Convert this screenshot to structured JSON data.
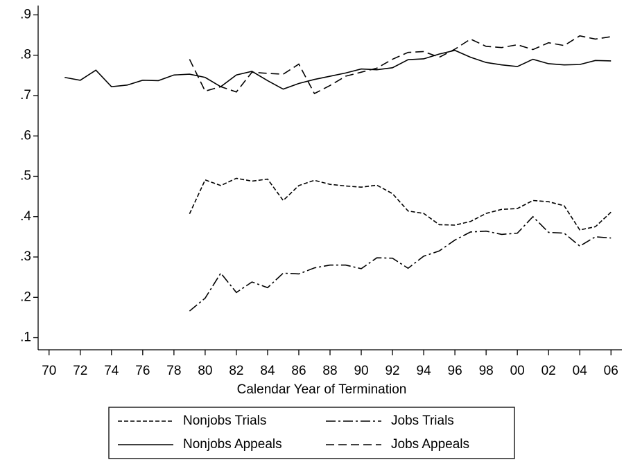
{
  "chart_data": {
    "type": "line",
    "xlabel": "Calendar Year of Termination",
    "x": [
      1971,
      1972,
      1973,
      1974,
      1975,
      1976,
      1977,
      1978,
      1979,
      1980,
      1981,
      1982,
      1983,
      1984,
      1985,
      1986,
      1987,
      1988,
      1989,
      1990,
      1991,
      1992,
      1993,
      1994,
      1995,
      1996,
      1997,
      1998,
      1999,
      2000,
      2001,
      2002,
      2003,
      2004,
      2005,
      2006
    ],
    "series": [
      {
        "name": "Nonjobs Trials",
        "color": "#000000",
        "dash": "6,3",
        "values": [
          null,
          null,
          null,
          null,
          null,
          null,
          null,
          null,
          0.407,
          0.491,
          0.477,
          0.495,
          0.488,
          0.493,
          0.44,
          0.477,
          0.49,
          0.48,
          0.476,
          0.473,
          0.478,
          0.457,
          0.414,
          0.408,
          0.38,
          0.379,
          0.388,
          0.408,
          0.418,
          0.42,
          0.44,
          0.437,
          0.427,
          0.367,
          0.375,
          0.411
        ]
      },
      {
        "name": "Jobs Trials",
        "color": "#000000",
        "dash": "14,4,3,4",
        "values": [
          null,
          null,
          null,
          null,
          null,
          null,
          null,
          null,
          0.166,
          0.198,
          0.26,
          0.212,
          0.238,
          0.224,
          0.26,
          0.258,
          0.273,
          0.28,
          0.28,
          0.271,
          0.298,
          0.297,
          0.272,
          0.302,
          0.315,
          0.342,
          0.362,
          0.364,
          0.356,
          0.359,
          0.4,
          0.361,
          0.359,
          0.327,
          0.35,
          0.347
        ]
      },
      {
        "name": "Nonjobs Appeals",
        "color": "#000000",
        "dash": "none",
        "values": [
          0.745,
          0.738,
          0.763,
          0.722,
          0.726,
          0.738,
          0.737,
          0.751,
          0.753,
          0.745,
          0.722,
          0.751,
          0.76,
          0.737,
          0.716,
          0.73,
          0.74,
          0.748,
          0.756,
          0.766,
          0.764,
          0.769,
          0.789,
          0.791,
          0.803,
          0.812,
          0.795,
          0.782,
          0.776,
          0.772,
          0.79,
          0.779,
          0.776,
          0.777,
          0.787,
          0.786
        ]
      },
      {
        "name": "Jobs Appeals",
        "color": "#000000",
        "dash": "12,6",
        "values": [
          null,
          null,
          null,
          null,
          null,
          null,
          null,
          null,
          0.79,
          0.711,
          0.722,
          0.709,
          0.758,
          0.755,
          0.753,
          0.778,
          0.705,
          0.725,
          0.748,
          0.758,
          0.768,
          0.79,
          0.807,
          0.809,
          0.795,
          0.815,
          0.84,
          0.822,
          0.819,
          0.826,
          0.814,
          0.831,
          0.824,
          0.848,
          0.84,
          0.846
        ]
      }
    ],
    "xlim": [
      1969.3,
      2006.7
    ],
    "ylim": [
      0.07,
      0.93
    ],
    "xticks": [
      {
        "value": 1970,
        "label": "70"
      },
      {
        "value": 1972,
        "label": "72"
      },
      {
        "value": 1974,
        "label": "74"
      },
      {
        "value": 1976,
        "label": "76"
      },
      {
        "value": 1978,
        "label": "78"
      },
      {
        "value": 1980,
        "label": "80"
      },
      {
        "value": 1982,
        "label": "82"
      },
      {
        "value": 1984,
        "label": "84"
      },
      {
        "value": 1986,
        "label": "86"
      },
      {
        "value": 1988,
        "label": "88"
      },
      {
        "value": 1990,
        "label": "90"
      },
      {
        "value": 1992,
        "label": "92"
      },
      {
        "value": 1994,
        "label": "94"
      },
      {
        "value": 1996,
        "label": "96"
      },
      {
        "value": 1998,
        "label": "98"
      },
      {
        "value": 2000,
        "label": "00"
      },
      {
        "value": 2002,
        "label": "02"
      },
      {
        "value": 2004,
        "label": "04"
      },
      {
        "value": 2006,
        "label": "06"
      }
    ],
    "yticks": [
      {
        "value": 0.1,
        "label": ".1"
      },
      {
        "value": 0.2,
        "label": ".2"
      },
      {
        "value": 0.3,
        "label": ".3"
      },
      {
        "value": 0.4,
        "label": ".4"
      },
      {
        "value": 0.5,
        "label": ".5"
      },
      {
        "value": 0.6,
        "label": ".6"
      },
      {
        "value": 0.7,
        "label": ".7"
      },
      {
        "value": 0.8,
        "label": ".8"
      },
      {
        "value": 0.9,
        "label": ".9"
      }
    ],
    "grid": false
  }
}
